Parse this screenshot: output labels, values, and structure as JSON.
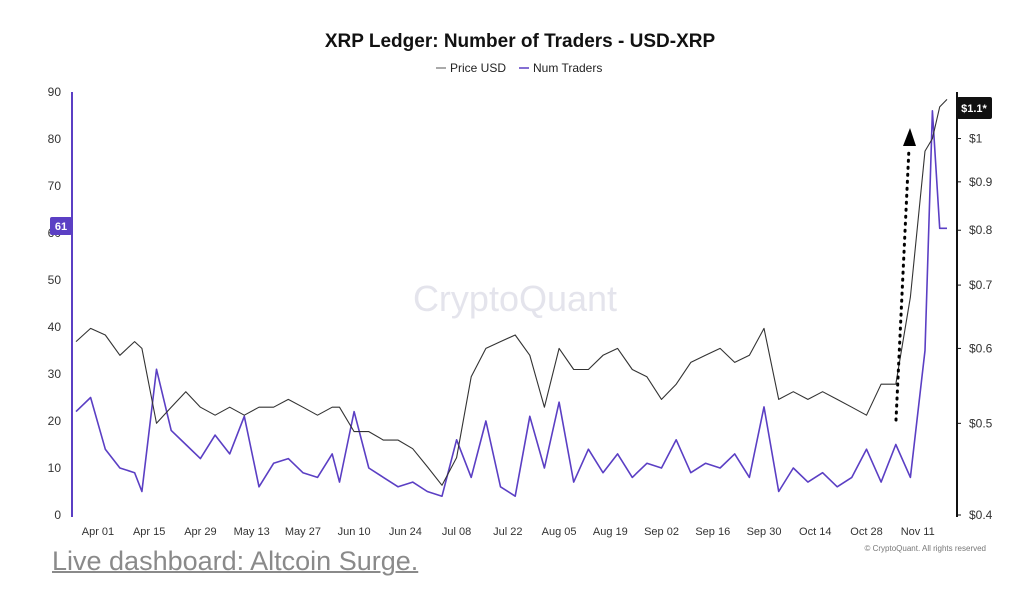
{
  "chart_data": {
    "type": "line",
    "title": "XRP Ledger: Number of Traders - USD-XRP",
    "legend": [
      "Price USD",
      "Num Traders"
    ],
    "legend_position": "top-center",
    "x_tick_labels": [
      "Apr 01",
      "Apr 15",
      "Apr 29",
      "May 13",
      "May 27",
      "Jun 10",
      "Jun 24",
      "Jul 08",
      "Jul 22",
      "Aug 05",
      "Aug 19",
      "Sep 02",
      "Sep 16",
      "Sep 30",
      "Oct 14",
      "Oct 28",
      "Nov 11"
    ],
    "y_left": {
      "label": "Num Traders",
      "range": [
        0,
        90
      ],
      "ticks": [
        "0",
        "10",
        "20",
        "30",
        "40",
        "50",
        "60",
        "70",
        "80",
        "90"
      ]
    },
    "y_right": {
      "label": "Price USD",
      "scale": "log",
      "range": [
        0.4,
        1.12
      ],
      "ticks": [
        "$0.4",
        "$0.5",
        "$0.6",
        "$0.7",
        "$0.8",
        "$0.9",
        "$1"
      ]
    },
    "current_badges": {
      "num_traders": "61",
      "price": "$1.1*"
    },
    "watermark": "CryptoQuant",
    "credit": "© CryptoQuant. All rights reserved",
    "colors": {
      "num_traders": "#5b3fc4",
      "price": "#333333",
      "badge_left": "#5b3fc4",
      "badge_right": "#111111",
      "arrow": "#000000"
    },
    "series": [
      {
        "name": "Num Traders",
        "axis": "left",
        "x": [
          "Mar 26",
          "Mar 30",
          "Apr 03",
          "Apr 07",
          "Apr 11",
          "Apr 13",
          "Apr 17",
          "Apr 21",
          "Apr 25",
          "Apr 29",
          "May 03",
          "May 07",
          "May 11",
          "May 15",
          "May 19",
          "May 23",
          "May 27",
          "May 31",
          "Jun 04",
          "Jun 06",
          "Jun 10",
          "Jun 14",
          "Jun 18",
          "Jun 22",
          "Jun 26",
          "Jun 30",
          "Jul 04",
          "Jul 08",
          "Jul 12",
          "Jul 16",
          "Jul 20",
          "Jul 24",
          "Jul 28",
          "Aug 01",
          "Aug 05",
          "Aug 09",
          "Aug 13",
          "Aug 17",
          "Aug 21",
          "Aug 25",
          "Aug 29",
          "Sep 02",
          "Sep 06",
          "Sep 10",
          "Sep 14",
          "Sep 18",
          "Sep 22",
          "Sep 26",
          "Sep 30",
          "Oct 04",
          "Oct 08",
          "Oct 12",
          "Oct 16",
          "Oct 20",
          "Oct 24",
          "Oct 28",
          "Nov 01",
          "Nov 05",
          "Nov 09",
          "Nov 13",
          "Nov 15",
          "Nov 17",
          "Nov 19"
        ],
        "values": [
          22,
          25,
          14,
          10,
          9,
          5,
          31,
          18,
          15,
          12,
          17,
          13,
          21,
          6,
          11,
          12,
          9,
          8,
          13,
          7,
          22,
          10,
          8,
          6,
          7,
          5,
          4,
          16,
          8,
          20,
          6,
          4,
          21,
          10,
          24,
          7,
          14,
          9,
          13,
          8,
          11,
          10,
          16,
          9,
          11,
          10,
          13,
          8,
          23,
          5,
          10,
          7,
          9,
          6,
          8,
          14,
          7,
          15,
          8,
          35,
          86,
          61,
          61
        ]
      },
      {
        "name": "Price USD",
        "axis": "right",
        "x": [
          "Mar 26",
          "Mar 30",
          "Apr 03",
          "Apr 07",
          "Apr 11",
          "Apr 13",
          "Apr 17",
          "Apr 21",
          "Apr 25",
          "Apr 29",
          "May 03",
          "May 07",
          "May 11",
          "May 15",
          "May 19",
          "May 23",
          "May 27",
          "May 31",
          "Jun 04",
          "Jun 06",
          "Jun 10",
          "Jun 14",
          "Jun 18",
          "Jun 22",
          "Jun 26",
          "Jun 30",
          "Jul 04",
          "Jul 08",
          "Jul 12",
          "Jul 16",
          "Jul 20",
          "Jul 24",
          "Jul 28",
          "Aug 01",
          "Aug 05",
          "Aug 09",
          "Aug 13",
          "Aug 17",
          "Aug 21",
          "Aug 25",
          "Aug 29",
          "Sep 02",
          "Sep 06",
          "Sep 10",
          "Sep 14",
          "Sep 18",
          "Sep 22",
          "Sep 26",
          "Sep 30",
          "Oct 04",
          "Oct 08",
          "Oct 12",
          "Oct 16",
          "Oct 20",
          "Oct 24",
          "Oct 28",
          "Nov 01",
          "Nov 05",
          "Nov 09",
          "Nov 13",
          "Nov 15",
          "Nov 17",
          "Nov 19"
        ],
        "values": [
          0.61,
          0.63,
          0.62,
          0.59,
          0.61,
          0.6,
          0.5,
          0.52,
          0.54,
          0.52,
          0.51,
          0.52,
          0.51,
          0.52,
          0.52,
          0.53,
          0.52,
          0.51,
          0.52,
          0.52,
          0.49,
          0.49,
          0.48,
          0.48,
          0.47,
          0.45,
          0.43,
          0.46,
          0.56,
          0.6,
          0.61,
          0.62,
          0.59,
          0.52,
          0.6,
          0.57,
          0.57,
          0.59,
          0.6,
          0.57,
          0.56,
          0.53,
          0.55,
          0.58,
          0.59,
          0.6,
          0.58,
          0.59,
          0.63,
          0.53,
          0.54,
          0.53,
          0.54,
          0.53,
          0.52,
          0.51,
          0.55,
          0.55,
          0.68,
          0.97,
          1.0,
          1.08,
          1.1
        ]
      }
    ]
  },
  "footer": {
    "link_text": "Live dashboard: Altcoin Surge."
  }
}
